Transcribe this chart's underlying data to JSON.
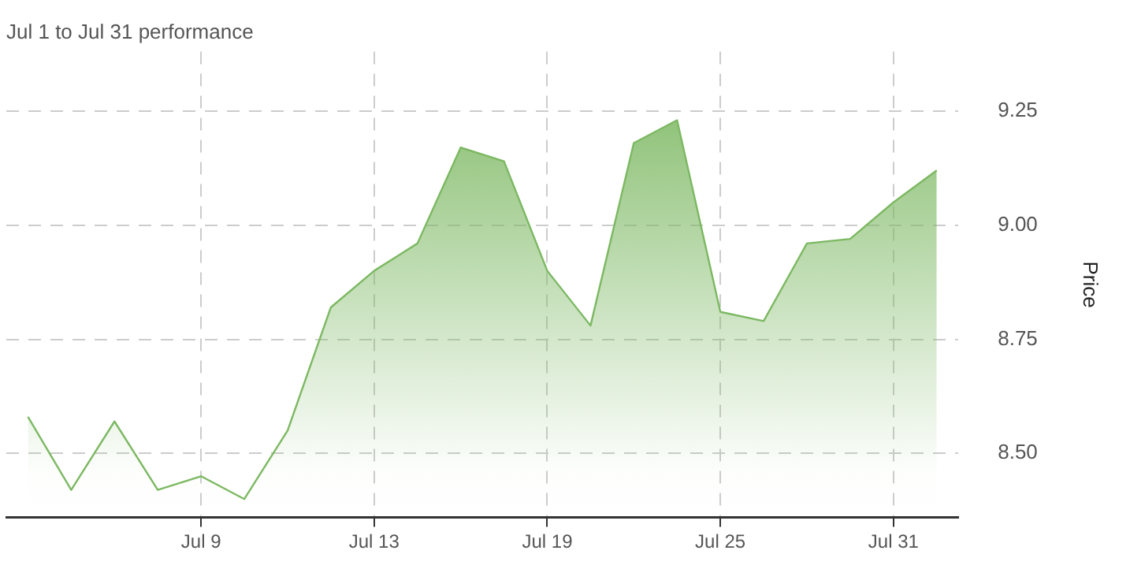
{
  "chart_data": {
    "type": "area",
    "title": "Jul 1 to Jul 31 performance",
    "ylabel": "Price",
    "categories": [
      null,
      null,
      null,
      null,
      "Jul 9",
      null,
      null,
      null,
      "Jul 13",
      null,
      null,
      null,
      "Jul 19",
      null,
      null,
      null,
      "Jul 25",
      null,
      null,
      null,
      "Jul 31",
      null
    ],
    "series": [
      {
        "color": "#7cb862",
        "values": [
          8.58,
          8.42,
          8.57,
          8.42,
          8.45,
          8.4,
          8.55,
          8.82,
          8.9,
          8.96,
          9.17,
          9.14,
          8.9,
          8.78,
          9.18,
          9.23,
          8.81,
          8.79,
          8.96,
          8.97,
          9.05,
          9.12
        ]
      }
    ],
    "ylim": [
      8.36,
      9.38
    ],
    "yticks": [
      {
        "value": 8.5,
        "label": "8.50"
      },
      8.75,
      {
        "value": 9,
        "label": "9.00"
      },
      9.25
    ],
    "grid": true,
    "legend": false,
    "marker": "none",
    "line_style": "solid"
  }
}
